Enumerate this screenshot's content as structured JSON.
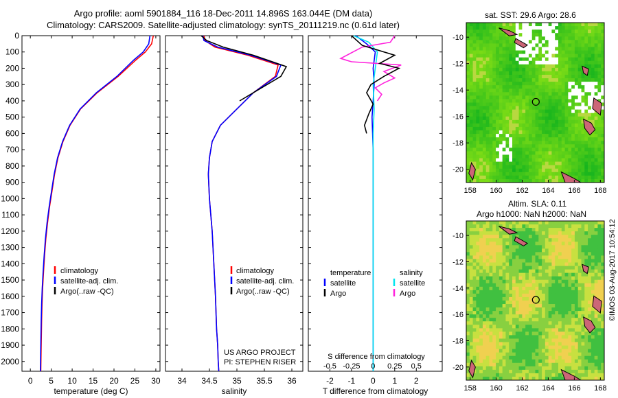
{
  "title_line1": "Argo profile: aoml 5901884_116 18-Dec-2011 14.896S 163.044E (DM data)",
  "title_line2": "Climatology: CARS2009. Satellite-adjusted climatology: synTS_20111219.nc (0.61d later)",
  "sst_title": "sat. SST: 29.6 Argo: 28.6",
  "sla_title_line1": "Altim. SLA: 0.11",
  "sla_title_line2": "Argo h1000: NaN h2000: NaN",
  "timestamp": "©IMOS 03-Aug-2017 10:54:12",
  "project_line1": "US ARGO PROJECT",
  "project_line2": "PI: STEPHEN RISER",
  "colors": {
    "climatology": "#ff0000",
    "satellite": "#0000ff",
    "argo": "#000000",
    "sal_satellite": "#00e5ee",
    "sal_argo": "#ff22dd"
  },
  "chart_data": [
    {
      "type": "line",
      "name": "temperature",
      "xlabel": "temperature (deg C)",
      "ylabel": "",
      "xlim": [
        -2,
        31
      ],
      "ylim": [
        0,
        2060
      ],
      "xticks": [
        0,
        5,
        10,
        15,
        20,
        25,
        30
      ],
      "yticks": [
        0,
        100,
        200,
        300,
        400,
        500,
        600,
        700,
        800,
        900,
        1000,
        1100,
        1200,
        1300,
        1400,
        1500,
        1600,
        1700,
        1800,
        1900,
        2000
      ],
      "legend": [
        "climatology",
        "satellite-adj. clim.",
        "Argo(..raw -QC)"
      ],
      "series": [
        {
          "name": "climatology",
          "color": "#ff0000",
          "x": [
            29.4,
            29,
            27.5,
            25.2,
            21,
            16,
            12,
            9.5,
            7.8,
            6.6,
            5.8,
            5.2,
            4.6,
            4.1,
            3.7,
            3.4,
            3.15,
            2.95,
            2.8,
            2.7,
            2.6,
            2.5
          ],
          "y": [
            0,
            50,
            100,
            150,
            250,
            350,
            450,
            550,
            650,
            750,
            850,
            950,
            1050,
            1150,
            1250,
            1350,
            1450,
            1550,
            1650,
            1750,
            1900,
            2060
          ]
        },
        {
          "name": "satellite-adj. clim.",
          "color": "#0000ff",
          "x": [
            28.6,
            28.3,
            27,
            24.7,
            20.7,
            15.8,
            11.9,
            9.4,
            7.7,
            6.5,
            5.7,
            5.1,
            4.5,
            4.0,
            3.6,
            3.3,
            3.05,
            2.85,
            2.7,
            2.6,
            2.5,
            2.4
          ],
          "y": [
            0,
            50,
            100,
            150,
            250,
            350,
            450,
            550,
            650,
            750,
            850,
            950,
            1050,
            1150,
            1250,
            1350,
            1450,
            1550,
            1650,
            1750,
            1900,
            2060
          ]
        }
      ]
    },
    {
      "type": "line",
      "name": "salinity",
      "xlabel": "salinity",
      "xlim": [
        33.7,
        36.2
      ],
      "ylim": [
        0,
        2060
      ],
      "xticks": [
        34,
        34.5,
        35,
        35.5,
        36
      ],
      "legend": [
        "climatology",
        "satellite-adj. clim.",
        "Argo(..raw -QC)"
      ],
      "series": [
        {
          "name": "climatology",
          "color": "#ff0000",
          "x": [
            34.4,
            34.42,
            34.6,
            35.2,
            35.75,
            35.7,
            35.3,
            35.0,
            34.7,
            34.55,
            34.5,
            34.48,
            34.5,
            34.55,
            34.58,
            34.61,
            34.63,
            34.65,
            34.66,
            34.67
          ],
          "y": [
            0,
            30,
            70,
            120,
            180,
            250,
            350,
            450,
            550,
            650,
            750,
            850,
            1000,
            1200,
            1400,
            1600,
            1800,
            1900,
            2000,
            2060
          ]
        },
        {
          "name": "satellite-adj. clim.",
          "color": "#0000ff",
          "x": [
            34.38,
            34.4,
            34.65,
            35.25,
            35.8,
            35.72,
            35.3,
            35.0,
            34.7,
            34.55,
            34.5,
            34.48,
            34.5,
            34.55,
            34.58,
            34.61,
            34.63,
            34.65,
            34.66,
            34.67
          ],
          "y": [
            0,
            30,
            70,
            120,
            180,
            250,
            350,
            450,
            550,
            650,
            750,
            850,
            1000,
            1200,
            1400,
            1600,
            1800,
            1900,
            2000,
            2060
          ]
        },
        {
          "name": "Argo",
          "color": "#000000",
          "x": [
            34.35,
            34.45,
            34.75,
            35.3,
            35.9,
            35.8,
            35.4,
            35.05
          ],
          "y": [
            0,
            30,
            70,
            120,
            190,
            250,
            330,
            400
          ]
        }
      ]
    },
    {
      "type": "line",
      "name": "difference",
      "xlabel": "T difference from climatology",
      "xlabel_top": "S difference from climatology",
      "xlim": [
        -3,
        3.2
      ],
      "ylim": [
        0,
        2060
      ],
      "xticks": [
        -2,
        -1,
        0,
        1,
        2
      ],
      "xticks_s": [
        -0.5,
        -0.25,
        0,
        0.25,
        0.5
      ],
      "legend_temperature": [
        "temperature",
        "satellite",
        "Argo"
      ],
      "legend_salinity": [
        "salinity",
        "satellite",
        "Argo"
      ],
      "series": [
        {
          "name": "T satellite",
          "color": "#0000ff",
          "x": [
            -0.8,
            -0.3,
            0.1,
            0.0,
            0.05,
            0.0,
            -0.05,
            0.0,
            0.0,
            0.0,
            0.0,
            0.0
          ],
          "y": [
            0,
            50,
            100,
            200,
            300,
            400,
            500,
            700,
            1000,
            1400,
            1800,
            2060
          ]
        },
        {
          "name": "S satellite",
          "color": "#00e5ee",
          "x": [
            -0.9,
            -0.2,
            0.2,
            0.1,
            0.0,
            0.05,
            0.0,
            0.0,
            0.0,
            0.0,
            0.0
          ],
          "y": [
            0,
            40,
            100,
            200,
            300,
            450,
            600,
            900,
            1300,
            1700,
            2060
          ]
        },
        {
          "name": "S Argo",
          "color": "#ff22dd",
          "x": [
            1.0,
            0.8,
            -0.5,
            -1.5,
            -1.0,
            1.3,
            0.5,
            1.0,
            0.5,
            0.1,
            0.4,
            0.2
          ],
          "y": [
            0,
            40,
            70,
            140,
            160,
            180,
            220,
            260,
            290,
            320,
            360,
            400
          ]
        },
        {
          "name": "T Argo",
          "color": "#000000",
          "x": [
            -1.0,
            -0.5,
            1.0,
            0.3,
            1.2,
            0.5,
            -0.1,
            -0.3,
            0.0,
            -0.2,
            -0.4,
            -0.3
          ],
          "y": [
            0,
            60,
            120,
            170,
            200,
            250,
            300,
            350,
            420,
            480,
            550,
            600
          ]
        }
      ]
    },
    {
      "type": "heatmap",
      "name": "sst_map",
      "xticks": [
        158,
        160,
        162,
        164,
        166,
        168
      ],
      "yticks": [
        -10,
        -12,
        -14,
        -16,
        -18,
        -20
      ],
      "marker": {
        "lon": 163.044,
        "lat": -14.896
      }
    },
    {
      "type": "heatmap",
      "name": "sla_map",
      "xticks": [
        158,
        160,
        162,
        164,
        166,
        168
      ],
      "yticks": [
        -10,
        -12,
        -14,
        -16,
        -18,
        -20
      ],
      "marker": {
        "lon": 163.044,
        "lat": -14.896
      }
    }
  ]
}
